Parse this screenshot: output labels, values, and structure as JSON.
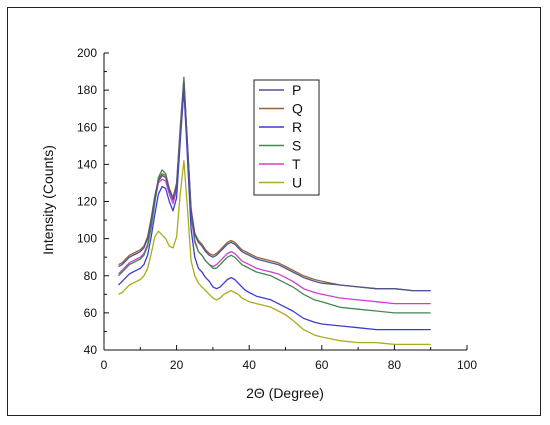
{
  "chart_data": {
    "type": "line",
    "title": "",
    "xlabel": "2Θ (Degree)",
    "ylabel": "Intensity (Counts)",
    "xlim": [
      0,
      100
    ],
    "ylim": [
      40,
      200
    ],
    "xticks": [
      0,
      20,
      40,
      60,
      80,
      100
    ],
    "yticks": [
      40,
      60,
      80,
      100,
      120,
      140,
      160,
      180,
      200
    ],
    "grid": false,
    "legend_position": "top-right",
    "x": [
      4,
      5,
      6,
      7,
      8,
      9,
      10,
      11,
      12,
      13,
      14,
      15,
      16,
      17,
      18,
      19,
      20,
      21,
      22,
      23,
      24,
      25,
      26,
      27,
      28,
      29,
      30,
      31,
      32,
      33,
      34,
      35,
      36,
      37,
      38,
      39,
      40,
      42,
      44,
      46,
      48,
      50,
      52,
      55,
      58,
      60,
      65,
      70,
      75,
      80,
      85,
      90
    ],
    "series": [
      {
        "name": "P",
        "color": "#4b5590",
        "values": [
          85,
          86,
          88,
          90,
          91,
          92,
          93,
          95,
          100,
          110,
          122,
          131,
          134,
          133,
          126,
          121,
          128,
          155,
          184,
          150,
          115,
          102,
          98,
          96,
          93,
          91,
          90,
          91,
          93,
          95,
          97,
          98,
          97,
          95,
          93,
          92,
          91,
          89,
          88,
          87,
          86,
          84,
          82,
          79,
          77,
          76,
          75,
          74,
          73,
          73,
          72,
          72
        ]
      },
      {
        "name": "Q",
        "color": "#9b6035",
        "values": [
          86,
          87,
          89,
          91,
          92,
          93,
          94,
          96,
          101,
          111,
          123,
          132,
          135,
          134,
          127,
          122,
          129,
          157,
          185,
          151,
          116,
          103,
          99,
          97,
          94,
          92,
          91,
          92,
          94,
          96,
          98,
          99,
          98,
          96,
          94,
          93,
          92,
          90,
          89,
          88,
          87,
          85,
          83,
          80,
          78,
          77,
          75,
          74,
          73,
          73,
          72,
          72
        ]
      },
      {
        "name": "R",
        "color": "#3c3cd4",
        "values": [
          75,
          77,
          79,
          81,
          82,
          83,
          84,
          86,
          91,
          101,
          113,
          124,
          128,
          127,
          120,
          115,
          122,
          152,
          181,
          143,
          105,
          90,
          84,
          82,
          79,
          77,
          74,
          73,
          74,
          76,
          78,
          79,
          78,
          76,
          74,
          72,
          71,
          69,
          68,
          67,
          65,
          63,
          61,
          57,
          55,
          54,
          53,
          52,
          51,
          51,
          51,
          51
        ]
      },
      {
        "name": "S",
        "color": "#3e8a52",
        "values": [
          80,
          82,
          84,
          86,
          87,
          88,
          89,
          91,
          96,
          106,
          119,
          133,
          137,
          135,
          127,
          122,
          130,
          160,
          187,
          150,
          114,
          99,
          93,
          91,
          88,
          86,
          84,
          84,
          86,
          88,
          90,
          91,
          90,
          88,
          86,
          85,
          84,
          82,
          81,
          80,
          78,
          76,
          74,
          70,
          67,
          66,
          63,
          62,
          61,
          60,
          60,
          60
        ]
      },
      {
        "name": "T",
        "color": "#d13ed6",
        "values": [
          81,
          83,
          85,
          87,
          88,
          89,
          90,
          92,
          97,
          107,
          120,
          130,
          132,
          131,
          124,
          119,
          126,
          154,
          180,
          147,
          112,
          98,
          93,
          91,
          88,
          86,
          85,
          86,
          88,
          90,
          92,
          93,
          92,
          90,
          88,
          87,
          86,
          84,
          83,
          82,
          81,
          79,
          77,
          73,
          71,
          70,
          68,
          67,
          66,
          65,
          65,
          65
        ]
      },
      {
        "name": "U",
        "color": "#a9ad1c",
        "values": [
          70,
          71,
          73,
          75,
          76,
          77,
          78,
          80,
          84,
          92,
          101,
          104,
          102,
          100,
          96,
          95,
          101,
          124,
          142,
          116,
          88,
          80,
          76,
          74,
          72,
          70,
          68,
          67,
          68,
          70,
          71,
          72,
          71,
          70,
          68,
          67,
          66,
          65,
          64,
          63,
          61,
          59,
          56,
          51,
          48,
          47,
          45,
          44,
          44,
          43,
          43,
          43
        ]
      }
    ]
  }
}
